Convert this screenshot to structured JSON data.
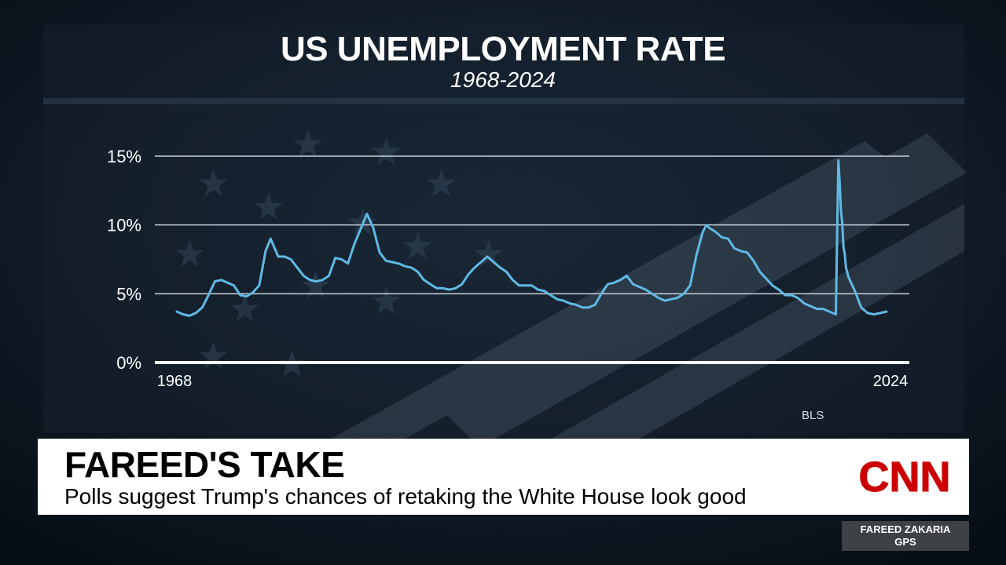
{
  "chart_data": {
    "type": "line",
    "title": "US UNEMPLOYMENT RATE",
    "subtitle": "1968-2024",
    "ylim": [
      0,
      15
    ],
    "yticks": [
      "15%",
      "10%",
      "5%",
      "0%"
    ],
    "yticks_values": [
      15,
      10,
      5,
      0
    ],
    "xlim": [
      1968,
      2024
    ],
    "xticks": [
      "1968",
      "2024"
    ],
    "grid": true,
    "source": "BLS",
    "colors": {
      "line": "#5fb9e3",
      "grid": "#c9d2db",
      "axis": "#ffffff"
    },
    "series": [
      {
        "x": [
          1968.0,
          1968.5,
          1969.0,
          1969.5,
          1970.0,
          1970.5,
          1971.0,
          1971.5,
          1972.0,
          1972.5,
          1973.0,
          1973.5,
          1974.0,
          1974.5,
          1975.0,
          1975.4,
          1976.0,
          1976.5,
          1977.0,
          1977.5,
          1978.0,
          1978.5,
          1979.0,
          1979.5,
          1980.0,
          1980.5,
          1981.0,
          1981.5,
          1982.0,
          1982.5,
          1983.0,
          1983.5,
          1984.0,
          1984.5,
          1985.0,
          1985.5,
          1986.0,
          1986.5,
          1987.0,
          1987.5,
          1988.0,
          1988.5,
          1989.0,
          1989.5,
          1990.0,
          1990.5,
          1991.0,
          1991.5,
          1992.0,
          1992.5,
          1993.0,
          1993.5,
          1994.0,
          1994.5,
          1995.0,
          1995.5,
          1996.0,
          1996.5,
          1997.0,
          1997.5,
          1998.0,
          1998.5,
          1999.0,
          1999.5,
          2000.0,
          2000.5,
          2001.0,
          2001.5,
          2002.0,
          2002.5,
          2003.0,
          2003.5,
          2004.0,
          2004.5,
          2005.0,
          2005.5,
          2006.0,
          2006.5,
          2007.0,
          2007.5,
          2008.0,
          2008.5,
          2009.0,
          2009.5,
          2009.8,
          2010.0,
          2010.5,
          2011.0,
          2011.5,
          2012.0,
          2012.5,
          2013.0,
          2013.5,
          2014.0,
          2014.5,
          2015.0,
          2015.5,
          2016.0,
          2016.5,
          2017.0,
          2017.5,
          2018.0,
          2018.5,
          2019.0,
          2019.5,
          2020.0,
          2020.2,
          2020.3,
          2020.4,
          2020.5,
          2020.6,
          2020.7,
          2020.8,
          2021.0,
          2021.5,
          2022.0,
          2022.5,
          2023.0,
          2023.5,
          2024.0
        ],
        "values": [
          3.7,
          3.5,
          3.4,
          3.6,
          4.0,
          4.9,
          5.9,
          6.0,
          5.8,
          5.6,
          4.9,
          4.8,
          5.1,
          5.6,
          8.1,
          9.0,
          7.7,
          7.7,
          7.5,
          6.9,
          6.3,
          6.0,
          5.9,
          6.0,
          6.3,
          7.6,
          7.5,
          7.2,
          8.6,
          9.7,
          10.8,
          9.8,
          8.0,
          7.4,
          7.3,
          7.2,
          7.0,
          6.9,
          6.6,
          6.0,
          5.7,
          5.4,
          5.4,
          5.3,
          5.4,
          5.7,
          6.4,
          6.9,
          7.3,
          7.7,
          7.3,
          6.9,
          6.6,
          6.0,
          5.6,
          5.6,
          5.6,
          5.3,
          5.2,
          4.9,
          4.6,
          4.5,
          4.3,
          4.2,
          4.0,
          4.0,
          4.2,
          5.0,
          5.7,
          5.8,
          6.0,
          6.3,
          5.7,
          5.5,
          5.3,
          5.0,
          4.7,
          4.5,
          4.6,
          4.7,
          5.0,
          5.6,
          7.8,
          9.5,
          10.0,
          9.8,
          9.5,
          9.1,
          9.0,
          8.3,
          8.1,
          8.0,
          7.4,
          6.6,
          6.1,
          5.6,
          5.3,
          4.9,
          4.9,
          4.7,
          4.3,
          4.1,
          3.9,
          3.9,
          3.7,
          3.5,
          14.7,
          13.2,
          11.0,
          10.2,
          8.4,
          7.9,
          6.9,
          6.2,
          5.2,
          4.0,
          3.6,
          3.5,
          3.6,
          3.7
        ]
      }
    ]
  },
  "lower_third": {
    "label": "FAREED'S TAKE",
    "headline": "Polls suggest Trump's chances of retaking the White House look good"
  },
  "network": {
    "logo": "CNN",
    "show_line1": "FAREED ZAKARIA",
    "show_line2": "GPS"
  }
}
